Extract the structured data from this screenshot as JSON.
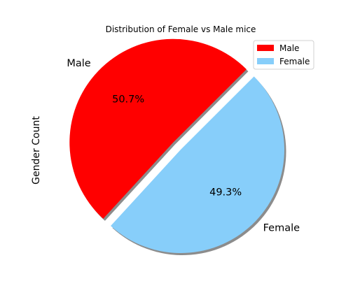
{
  "chart_data": {
    "type": "pie",
    "title": "Distribution of Female vs Male mice",
    "ylabel": "Gender Count",
    "labels": [
      "Male",
      "Female"
    ],
    "percent_labels": [
      "50.7%",
      "49.3%"
    ],
    "values": [
      50.7,
      49.3
    ],
    "colors": [
      "#ff0000",
      "#87cefa"
    ],
    "explode": [
      0.1,
      0
    ],
    "start_angle_deg": 45,
    "shadow": true,
    "legend": {
      "placement": "top-right",
      "entries": [
        "Male",
        "Female"
      ]
    }
  }
}
